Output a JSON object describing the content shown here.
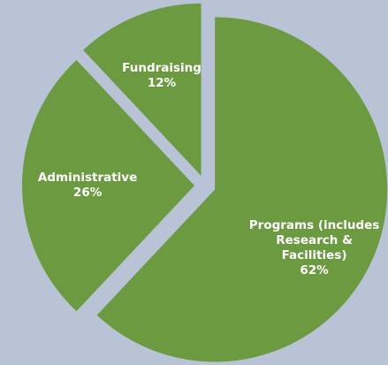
{
  "chart_data": {
    "type": "pie",
    "categories": [
      "Programs (includes Research & Facilities)",
      "Administrative",
      "Fundraising"
    ],
    "values": [
      62,
      26,
      12
    ],
    "value_labels": [
      "62%",
      "26%",
      "12%"
    ],
    "color": "#6b9a41"
  }
}
